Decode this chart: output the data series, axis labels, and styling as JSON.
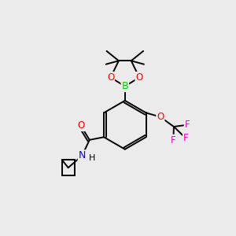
{
  "background_color": "#ebebeb",
  "bond_color": "#000000",
  "atom_colors": {
    "O": "#ff0000",
    "B": "#00cc00",
    "N": "#0000ff",
    "F": "#ff00cc",
    "C": "#000000"
  },
  "figsize": [
    3.0,
    3.0
  ],
  "dpi": 100,
  "bond_lw": 1.4,
  "fontsize": 8.5
}
